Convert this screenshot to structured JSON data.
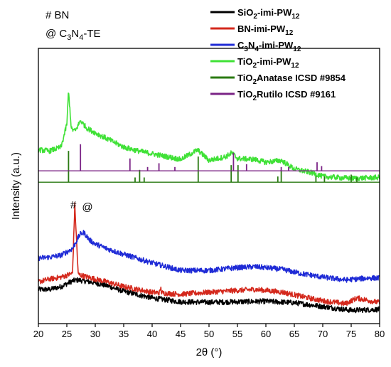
{
  "chart_data": {
    "type": "line",
    "xlabel": "2θ (°)",
    "ylabel": "Intensity (a.u.)",
    "xlim": [
      20,
      80
    ],
    "xticks": [
      20,
      25,
      30,
      35,
      40,
      45,
      50,
      55,
      60,
      65,
      70,
      75,
      80
    ],
    "yticks_shown": false,
    "legend_position": "top-right",
    "marker_notes": [
      {
        "symbol": "#",
        "label": "BN"
      },
      {
        "symbol": "@",
        "label": "C3N4-TE"
      }
    ],
    "annotations": [
      {
        "text": "#",
        "x": 26.4
      },
      {
        "text": "@",
        "x": 28.0
      }
    ],
    "series": [
      {
        "name": "SiO2-imi-PW12",
        "legend_parts": [
          [
            "SiO",
            false
          ],
          [
            "2",
            true
          ],
          [
            "-imi-PW",
            false
          ],
          [
            "12",
            true
          ]
        ],
        "color": "#000000",
        "kind": "line",
        "x": [
          20,
          22,
          24,
          26,
          27,
          28,
          30,
          32,
          35,
          40,
          45,
          50,
          55,
          60,
          65,
          70,
          75,
          80
        ],
        "y": [
          3.6,
          3.6,
          3.9,
          4.5,
          4.6,
          4.5,
          4.3,
          4.0,
          3.4,
          2.7,
          2.3,
          2.25,
          2.3,
          2.35,
          2.2,
          1.8,
          1.4,
          1.5
        ]
      },
      {
        "name": "BN-imi-PW12",
        "legend_parts": [
          [
            "BN-imi-PW",
            false
          ],
          [
            "12",
            true
          ]
        ],
        "color": "#d4281c",
        "kind": "line",
        "x": [
          20,
          22,
          24,
          26,
          26.4,
          27,
          28,
          30,
          32,
          35,
          40,
          45,
          50,
          55,
          58,
          60,
          63,
          66,
          70,
          74,
          76,
          80
        ],
        "y": [
          4.4,
          4.7,
          4.9,
          5.3,
          12.5,
          5.2,
          5.0,
          4.7,
          4.4,
          3.9,
          3.3,
          3.1,
          3.3,
          3.5,
          3.6,
          3.5,
          3.3,
          2.9,
          2.4,
          2.1,
          2.7,
          2.2
        ],
        "y_sharp_peaks": [
          [
            26.4,
            12.5
          ],
          [
            41.5,
            3.7
          ],
          [
            75.9,
            2.6
          ]
        ]
      },
      {
        "name": "C3N4-imi-PW12",
        "legend_parts": [
          [
            "C",
            false
          ],
          [
            "3",
            true
          ],
          [
            "N",
            false
          ],
          [
            "4",
            true
          ],
          [
            "-imi-PW",
            false
          ],
          [
            "12",
            true
          ]
        ],
        "color": "#1f2bd6",
        "kind": "line",
        "x": [
          20,
          22,
          24,
          26,
          27.3,
          28,
          29,
          30,
          32,
          35,
          40,
          45,
          50,
          55,
          58,
          60,
          63,
          66,
          70,
          74,
          78,
          80
        ],
        "y": [
          6.9,
          7.0,
          7.2,
          7.9,
          9.4,
          9.6,
          8.8,
          8.4,
          7.9,
          7.3,
          6.4,
          5.6,
          5.6,
          5.9,
          6.0,
          5.9,
          5.7,
          5.3,
          4.9,
          4.6,
          4.8,
          4.8
        ]
      },
      {
        "name": "TiO2-imi-PW12",
        "legend_parts": [
          [
            "TiO",
            false
          ],
          [
            "2",
            true
          ],
          [
            "-imi-PW",
            false
          ],
          [
            "12",
            true
          ]
        ],
        "color": "#3fe136",
        "kind": "line",
        "x": [
          20,
          22,
          24,
          25,
          25.3,
          25.8,
          26.5,
          27.4,
          28.5,
          30,
          32,
          35,
          37.5,
          40,
          45,
          48,
          50,
          53,
          54,
          55,
          58,
          60,
          62.7,
          65,
          68,
          70,
          75,
          80
        ],
        "y": [
          18.3,
          18.2,
          18.6,
          21.0,
          24.5,
          20.5,
          20.3,
          21.4,
          20.6,
          20.1,
          19.5,
          18.6,
          18.2,
          17.9,
          17.3,
          18.3,
          17.2,
          17.6,
          18.0,
          17.4,
          17.3,
          17.0,
          17.2,
          16.3,
          15.9,
          15.5,
          15.3,
          15.4
        ]
      },
      {
        "name": "TiO2Anatase ICSD #9854",
        "legend_parts": [
          [
            "TiO",
            false
          ],
          [
            "2",
            true
          ],
          [
            "Anatase ICSD #9854",
            false
          ]
        ],
        "color": "#2a7a12",
        "kind": "sticks",
        "baseline": 14.9,
        "peaks": [
          [
            25.3,
            18.2
          ],
          [
            37.0,
            15.4
          ],
          [
            37.8,
            16.2
          ],
          [
            38.6,
            15.4
          ],
          [
            48.1,
            17.6
          ],
          [
            53.9,
            16.7
          ],
          [
            55.1,
            16.7
          ],
          [
            62.1,
            15.5
          ],
          [
            62.7,
            16.2
          ],
          [
            68.8,
            15.5
          ],
          [
            70.3,
            15.5
          ],
          [
            75.0,
            15.7
          ],
          [
            76.0,
            15.4
          ]
        ]
      },
      {
        "name": "TiO2Rutilo ICSD #9161",
        "legend_parts": [
          [
            "TiO",
            false
          ],
          [
            "2",
            true
          ],
          [
            "Rutilo ICSD #9161",
            false
          ]
        ],
        "color": "#7b2486",
        "kind": "sticks",
        "baseline": 16.1,
        "peaks": [
          [
            27.4,
            18.9
          ],
          [
            36.1,
            17.4
          ],
          [
            39.2,
            16.5
          ],
          [
            41.2,
            16.9
          ],
          [
            44.0,
            16.5
          ],
          [
            54.3,
            18.0
          ],
          [
            56.6,
            16.8
          ],
          [
            62.7,
            16.5
          ],
          [
            64.0,
            16.5
          ],
          [
            69.0,
            17.0
          ],
          [
            69.8,
            16.6
          ]
        ]
      }
    ]
  }
}
